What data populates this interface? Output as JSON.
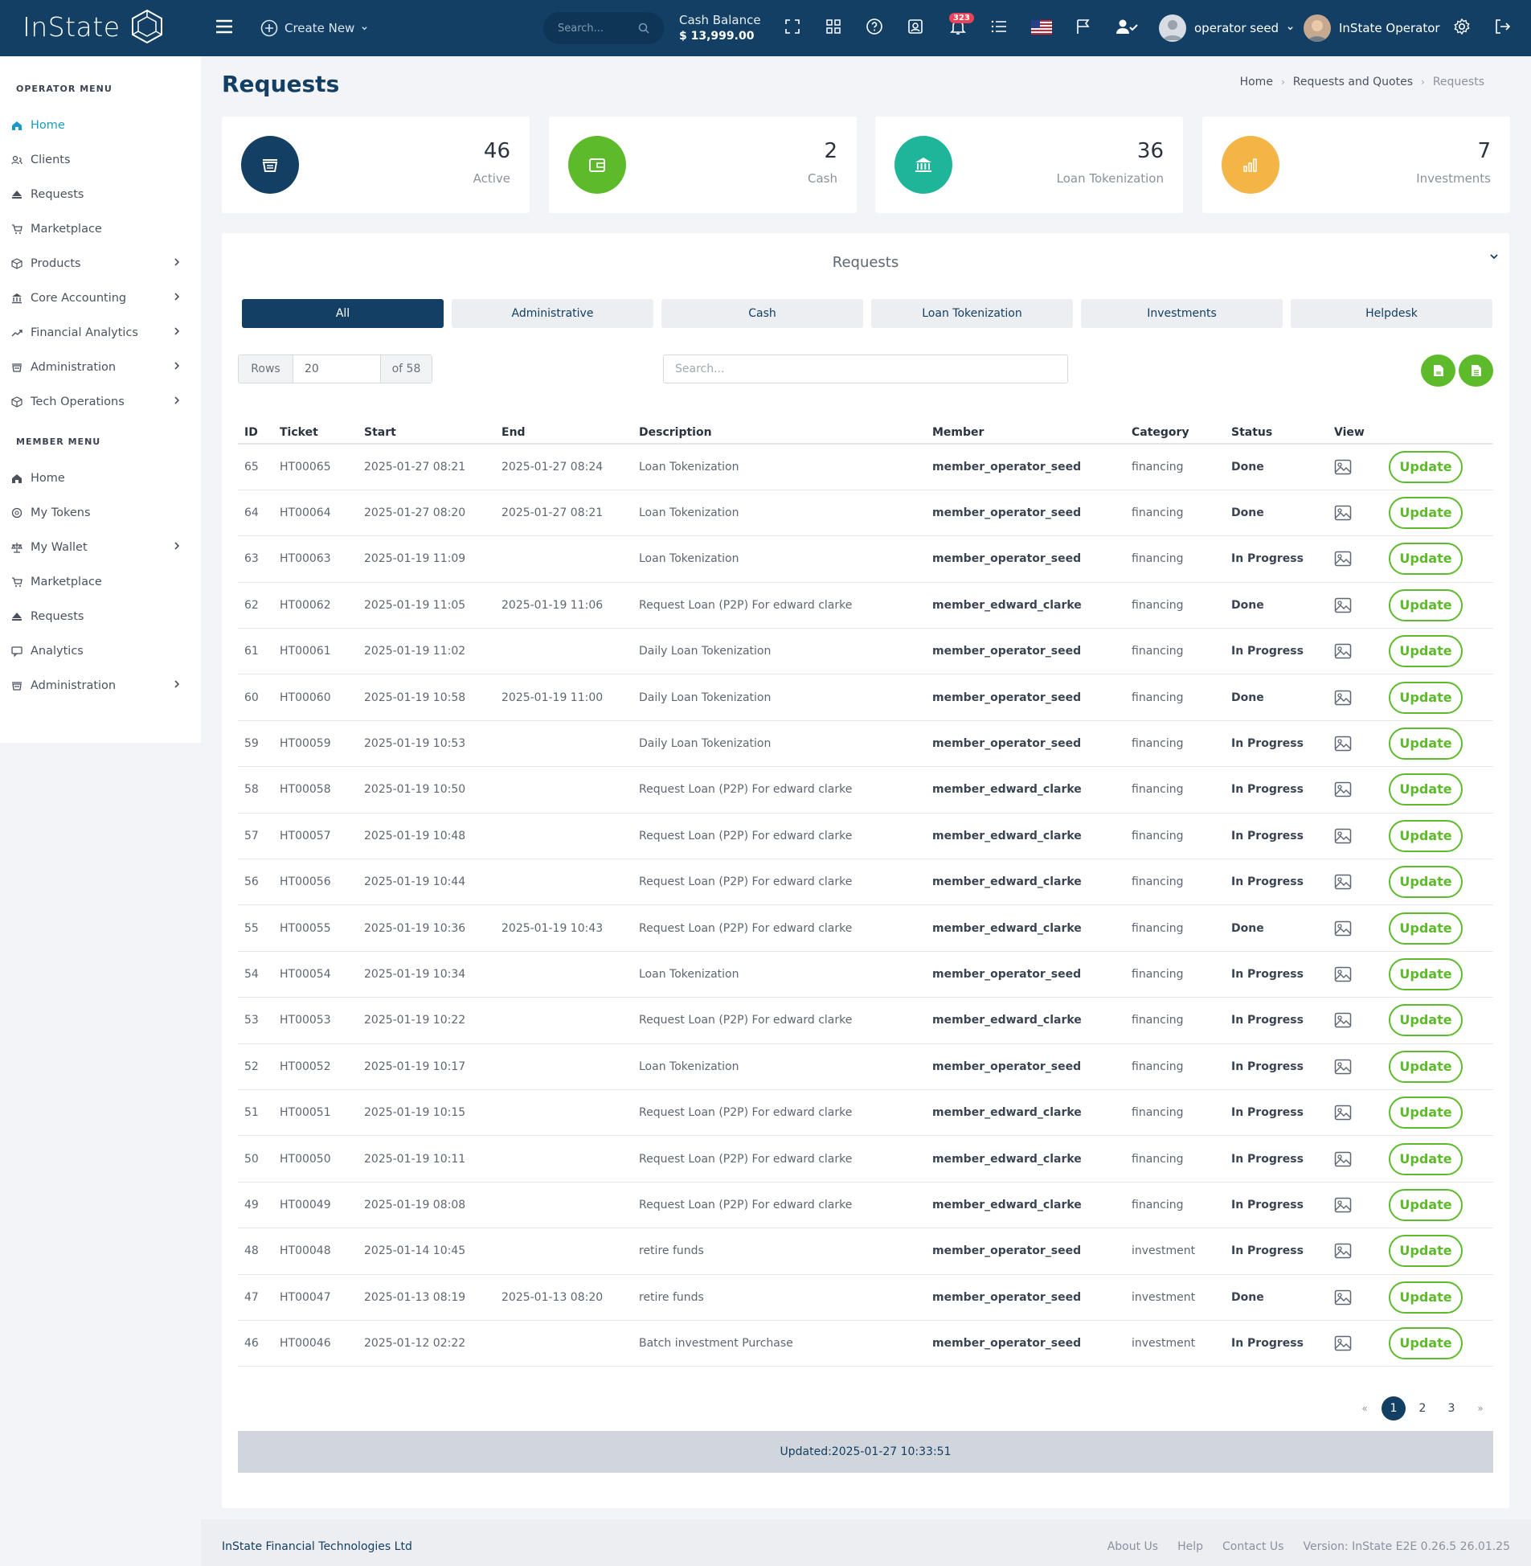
{
  "app": {
    "name": "InState"
  },
  "topbar": {
    "create_label": "Create New",
    "search_placeholder": "Search...",
    "cash_label": "Cash Balance",
    "cash_value": "$ 13,999.00",
    "notif_count": "323",
    "user1": "operator seed",
    "user2": "InState Operator"
  },
  "sidebar": {
    "operator_heading": "OPERATOR MENU",
    "operator_items": [
      {
        "label": "Home",
        "icon": "home-icon"
      },
      {
        "label": "Clients",
        "icon": "users-icon"
      },
      {
        "label": "Requests",
        "icon": "requests-icon"
      },
      {
        "label": "Marketplace",
        "icon": "cart-icon"
      },
      {
        "label": "Products",
        "icon": "box-icon"
      },
      {
        "label": "Core Accounting",
        "icon": "bank-icon"
      },
      {
        "label": "Financial Analytics",
        "icon": "trend-icon"
      },
      {
        "label": "Administration",
        "icon": "basket-icon"
      },
      {
        "label": "Tech Operations",
        "icon": "box-icon"
      }
    ],
    "member_heading": "MEMBER MENU",
    "member_items": [
      {
        "label": "Home",
        "icon": "home-icon"
      },
      {
        "label": "My Tokens",
        "icon": "token-icon"
      },
      {
        "label": "My Wallet",
        "icon": "scale-icon"
      },
      {
        "label": "Marketplace",
        "icon": "cart-icon"
      },
      {
        "label": "Requests",
        "icon": "requests-icon"
      },
      {
        "label": "Analytics",
        "icon": "chat-icon"
      },
      {
        "label": "Administration",
        "icon": "basket-icon"
      }
    ]
  },
  "page": {
    "title": "Requests",
    "breadcrumb": [
      "Home",
      "Requests and Quotes",
      "Requests"
    ]
  },
  "cards": [
    {
      "value": "46",
      "label": "Active",
      "color": "#123f63"
    },
    {
      "value": "2",
      "label": "Cash",
      "color": "#5dbb2b"
    },
    {
      "value": "36",
      "label": "Loan Tokenization",
      "color": "#1fb59a"
    },
    {
      "value": "7",
      "label": "Investments",
      "color": "#f4b547"
    }
  ],
  "panel": {
    "title": "Requests",
    "tabs": [
      "All",
      "Administrative",
      "Cash",
      "Loan Tokenization",
      "Investments",
      "Helpdesk"
    ],
    "rows_label": "Rows",
    "rows_value": "20",
    "rows_total": "of 58",
    "search_placeholder": "Search...",
    "columns": [
      "ID",
      "Ticket",
      "Start",
      "End",
      "Description",
      "Member",
      "Category",
      "Status",
      "View"
    ],
    "update_label": "Update",
    "rows": [
      [
        "65",
        "HT00065",
        "2025-01-27 08:21",
        "2025-01-27 08:24",
        "Loan Tokenization",
        "member_operator_seed",
        "financing",
        "Done"
      ],
      [
        "64",
        "HT00064",
        "2025-01-27 08:20",
        "2025-01-27 08:21",
        "Loan Tokenization",
        "member_operator_seed",
        "financing",
        "Done"
      ],
      [
        "63",
        "HT00063",
        "2025-01-19 11:09",
        "",
        "Loan Tokenization",
        "member_operator_seed",
        "financing",
        "In Progress"
      ],
      [
        "62",
        "HT00062",
        "2025-01-19 11:05",
        "2025-01-19 11:06",
        "Request Loan (P2P) For edward clarke",
        "member_edward_clarke",
        "financing",
        "Done"
      ],
      [
        "61",
        "HT00061",
        "2025-01-19 11:02",
        "",
        "Daily Loan Tokenization",
        "member_operator_seed",
        "financing",
        "In Progress"
      ],
      [
        "60",
        "HT00060",
        "2025-01-19 10:58",
        "2025-01-19 11:00",
        "Daily Loan Tokenization",
        "member_operator_seed",
        "financing",
        "Done"
      ],
      [
        "59",
        "HT00059",
        "2025-01-19 10:53",
        "",
        "Daily Loan Tokenization",
        "member_operator_seed",
        "financing",
        "In Progress"
      ],
      [
        "58",
        "HT00058",
        "2025-01-19 10:50",
        "",
        "Request Loan (P2P) For edward clarke",
        "member_edward_clarke",
        "financing",
        "In Progress"
      ],
      [
        "57",
        "HT00057",
        "2025-01-19 10:48",
        "",
        "Request Loan (P2P) For edward clarke",
        "member_edward_clarke",
        "financing",
        "In Progress"
      ],
      [
        "56",
        "HT00056",
        "2025-01-19 10:44",
        "",
        "Request Loan (P2P) For edward clarke",
        "member_edward_clarke",
        "financing",
        "In Progress"
      ],
      [
        "55",
        "HT00055",
        "2025-01-19 10:36",
        "2025-01-19 10:43",
        "Request Loan (P2P) For edward clarke",
        "member_edward_clarke",
        "financing",
        "Done"
      ],
      [
        "54",
        "HT00054",
        "2025-01-19 10:34",
        "",
        "Loan Tokenization",
        "member_operator_seed",
        "financing",
        "In Progress"
      ],
      [
        "53",
        "HT00053",
        "2025-01-19 10:22",
        "",
        "Request Loan (P2P) For edward clarke",
        "member_edward_clarke",
        "financing",
        "In Progress"
      ],
      [
        "52",
        "HT00052",
        "2025-01-19 10:17",
        "",
        "Loan Tokenization",
        "member_operator_seed",
        "financing",
        "In Progress"
      ],
      [
        "51",
        "HT00051",
        "2025-01-19 10:15",
        "",
        "Request Loan (P2P) For edward clarke",
        "member_edward_clarke",
        "financing",
        "In Progress"
      ],
      [
        "50",
        "HT00050",
        "2025-01-19 10:11",
        "",
        "Request Loan (P2P) For edward clarke",
        "member_edward_clarke",
        "financing",
        "In Progress"
      ],
      [
        "49",
        "HT00049",
        "2025-01-19 08:08",
        "",
        "Request Loan (P2P) For edward clarke",
        "member_edward_clarke",
        "financing",
        "In Progress"
      ],
      [
        "48",
        "HT00048",
        "2025-01-14 10:45",
        "",
        "retire funds",
        "member_operator_seed",
        "investment",
        "In Progress"
      ],
      [
        "47",
        "HT00047",
        "2025-01-13 08:19",
        "2025-01-13 08:20",
        "retire funds",
        "member_operator_seed",
        "investment",
        "Done"
      ],
      [
        "46",
        "HT00046",
        "2025-01-12 02:22",
        "",
        "Batch investment Purchase",
        "member_operator_seed",
        "investment",
        "In Progress"
      ]
    ],
    "pager": [
      "«",
      "1",
      "2",
      "3",
      "»"
    ],
    "updated": "Updated:2025-01-27 10:33:51"
  },
  "footer": {
    "company": "InState Financial Technologies Ltd",
    "links": [
      "About Us",
      "Help",
      "Contact Us",
      "Version: InState E2E 0.26.5 26.01.25"
    ]
  }
}
